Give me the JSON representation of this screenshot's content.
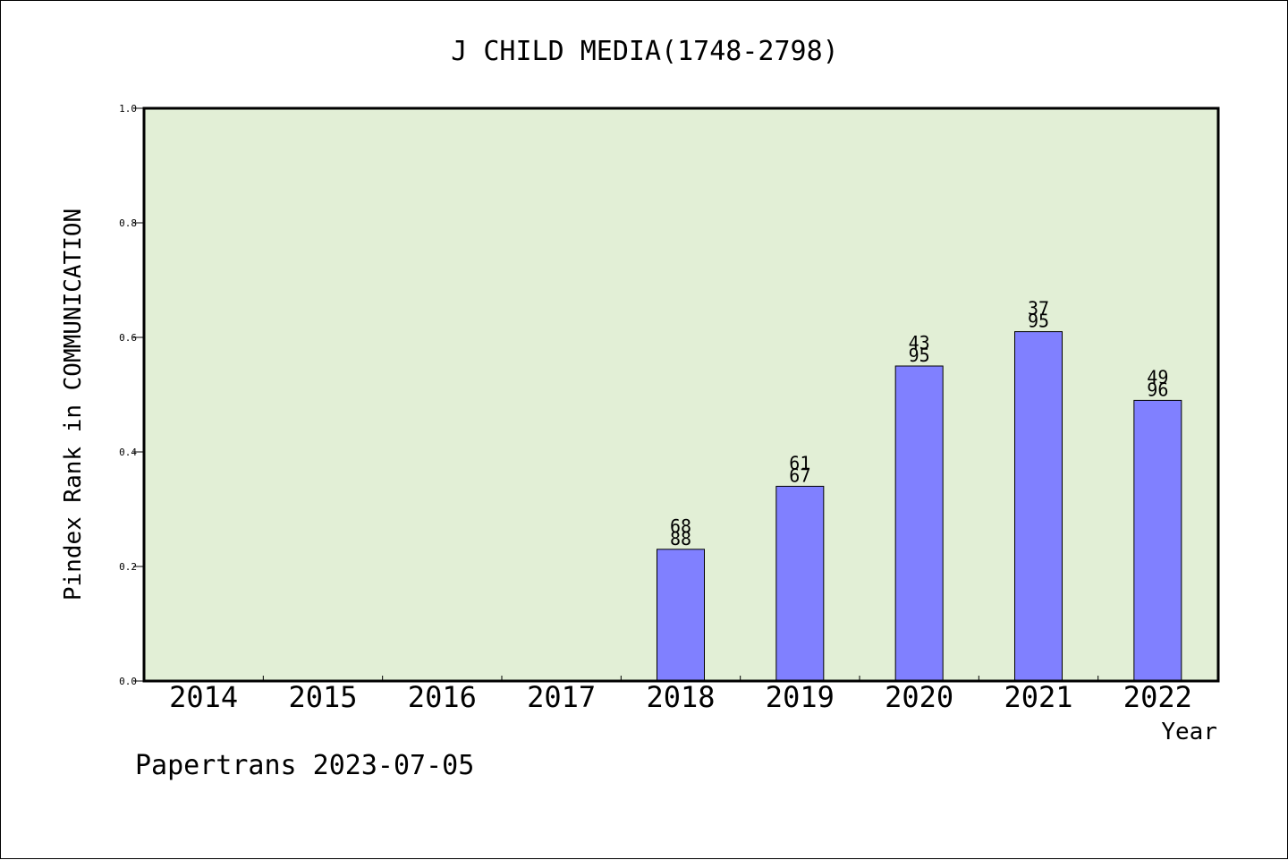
{
  "chart_data": {
    "type": "bar",
    "title": "J CHILD MEDIA(1748-2798)",
    "xlabel": "Year",
    "ylabel": "Pindex Rank in COMMUNICATION",
    "categories": [
      "2014",
      "2015",
      "2016",
      "2017",
      "2018",
      "2019",
      "2020",
      "2021",
      "2022"
    ],
    "series": [
      {
        "values": [
          null,
          null,
          null,
          null,
          0.23,
          0.34,
          0.55,
          0.61,
          0.49
        ],
        "labels_top": [
          null,
          null,
          null,
          null,
          "68",
          "61",
          "43",
          "37",
          "49"
        ],
        "labels_bottom": [
          null,
          null,
          null,
          null,
          "88",
          "67",
          "95",
          "95",
          "96"
        ]
      }
    ],
    "ylim": [
      0,
      1.0
    ],
    "yticks": [
      "0.0",
      "0.2",
      "0.4",
      "0.6",
      "0.8",
      "1.0"
    ],
    "grid": false,
    "colors": {
      "plot_background": "#e2efd6",
      "bar_fill": "#8080ff",
      "bar_stroke": "#000000",
      "frame": "#000000"
    }
  },
  "footer": {
    "text": "Papertrans 2023-07-05"
  }
}
